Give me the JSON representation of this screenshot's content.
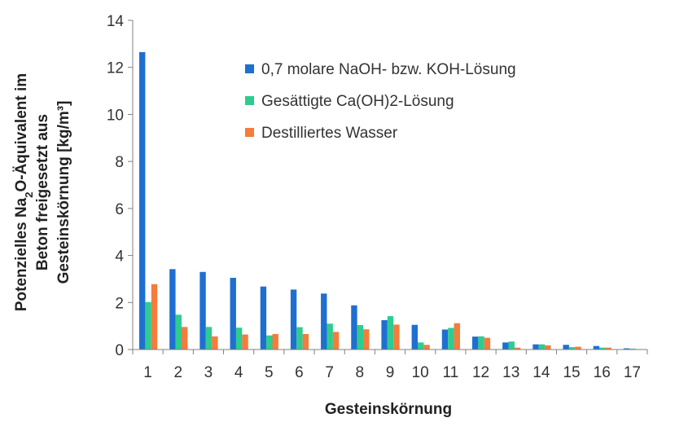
{
  "chart_data": {
    "type": "bar",
    "categories": [
      "1",
      "2",
      "3",
      "4",
      "5",
      "6",
      "7",
      "8",
      "9",
      "10",
      "11",
      "12",
      "13",
      "14",
      "15",
      "16",
      "17"
    ],
    "series": [
      {
        "name": "0,7 molare NaOH- bzw. KOH-Lösung",
        "color": "#1F6FD1",
        "values": [
          12.65,
          3.42,
          3.3,
          3.05,
          2.68,
          2.55,
          2.38,
          1.88,
          1.25,
          1.05,
          0.85,
          0.55,
          0.3,
          0.22,
          0.2,
          0.15,
          0.05
        ]
      },
      {
        "name": "Gesättigte Ca(OH)2-Lösung",
        "color": "#2ECC8F",
        "values": [
          2.02,
          1.48,
          0.96,
          0.93,
          0.6,
          0.95,
          1.1,
          1.04,
          1.42,
          0.3,
          0.92,
          0.56,
          0.34,
          0.22,
          0.1,
          0.08,
          0.04
        ]
      },
      {
        "name": "Destilliertes Wasser",
        "color": "#F47C3C",
        "values": [
          2.78,
          0.96,
          0.56,
          0.64,
          0.66,
          0.66,
          0.75,
          0.86,
          1.06,
          0.2,
          1.12,
          0.5,
          0.08,
          0.18,
          0.12,
          0.08,
          0.02
        ]
      }
    ],
    "yticks": [
      0,
      2,
      4,
      6,
      8,
      10,
      12,
      14
    ],
    "ylim": [
      0,
      14
    ],
    "xlabel": "Gesteinskörnung",
    "ylabel": {
      "line1_prefix": "Potenzielles Na",
      "line1_sub": "2",
      "line1_suffix": "O-Äquivalent im",
      "line2": "Beton freigesetzt aus",
      "line3": "Gesteinskörnung [kg/m³]"
    },
    "legend_position": "top-right",
    "grid": false
  }
}
